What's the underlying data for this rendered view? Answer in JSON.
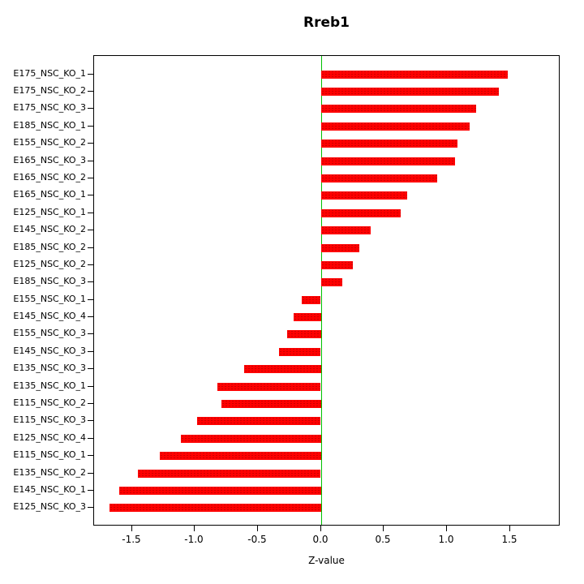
{
  "chart_data": {
    "type": "bar",
    "orientation": "horizontal",
    "title": "Rreb1",
    "xlabel": "Z-value",
    "ylabel": "",
    "xlim": [
      -1.8,
      1.9
    ],
    "xticks": [
      "-1.5",
      "-1.0",
      "-0.5",
      "0.0",
      "0.5",
      "1.0",
      "1.5"
    ],
    "xtick_values": [
      -1.5,
      -1.0,
      -0.5,
      0.0,
      0.5,
      1.0,
      1.5
    ],
    "grid": false,
    "legend": "none",
    "bar_color": "#ff0000",
    "zero_line_color": "#00c000",
    "categories": [
      "E175_NSC_KO_1",
      "E175_NSC_KO_2",
      "E175_NSC_KO_3",
      "E185_NSC_KO_1",
      "E155_NSC_KO_2",
      "E165_NSC_KO_3",
      "E165_NSC_KO_2",
      "E165_NSC_KO_1",
      "E125_NSC_KO_1",
      "E145_NSC_KO_2",
      "E185_NSC_KO_2",
      "E125_NSC_KO_2",
      "E185_NSC_KO_3",
      "E155_NSC_KO_1",
      "E145_NSC_KO_4",
      "E155_NSC_KO_3",
      "E145_NSC_KO_3",
      "E135_NSC_KO_3",
      "E135_NSC_KO_1",
      "E115_NSC_KO_2",
      "E115_NSC_KO_3",
      "E125_NSC_KO_4",
      "E115_NSC_KO_1",
      "E135_NSC_KO_2",
      "E145_NSC_KO_1",
      "E125_NSC_KO_3"
    ],
    "values": [
      1.48,
      1.41,
      1.23,
      1.18,
      1.08,
      1.06,
      0.92,
      0.68,
      0.63,
      0.39,
      0.3,
      0.25,
      0.17,
      -0.15,
      -0.22,
      -0.27,
      -0.33,
      -0.61,
      -0.82,
      -0.79,
      -0.98,
      -1.11,
      -1.28,
      -1.45,
      -1.6,
      -1.68
    ]
  }
}
